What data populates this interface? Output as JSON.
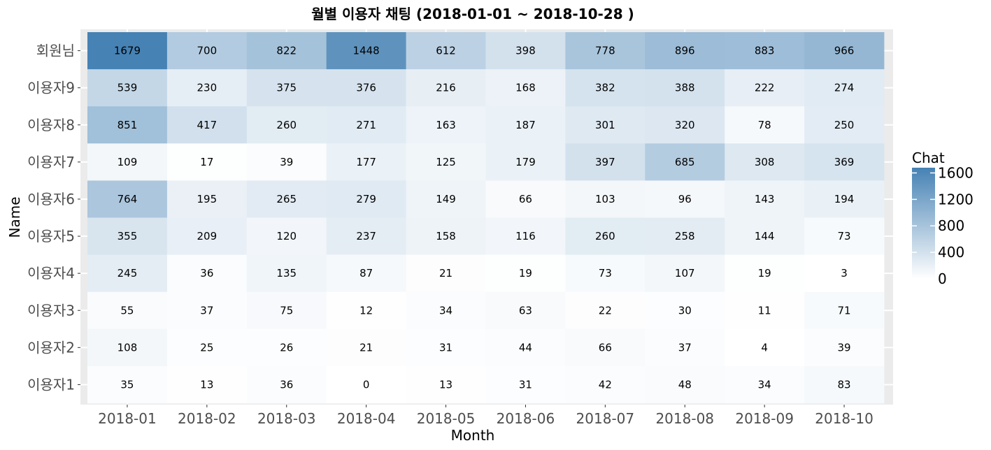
{
  "chart_data": {
    "type": "heatmap",
    "title": "월별 이용자 채팅 (2018-01-01  ~ 2018-10-28 )",
    "xlabel": "Month",
    "ylabel": "Name",
    "x_categories": [
      "2018-01",
      "2018-02",
      "2018-03",
      "2018-04",
      "2018-05",
      "2018-06",
      "2018-07",
      "2018-08",
      "2018-09",
      "2018-10"
    ],
    "y_categories": [
      "회원님",
      "이용자9",
      "이용자8",
      "이용자7",
      "이용자6",
      "이용자5",
      "이용자4",
      "이용자3",
      "이용자2",
      "이용자1"
    ],
    "values": [
      [
        1679,
        700,
        822,
        1448,
        612,
        398,
        778,
        896,
        883,
        966
      ],
      [
        539,
        230,
        375,
        376,
        216,
        168,
        382,
        388,
        222,
        274
      ],
      [
        851,
        417,
        260,
        271,
        163,
        187,
        301,
        320,
        78,
        250
      ],
      [
        109,
        17,
        39,
        177,
        125,
        179,
        397,
        685,
        308,
        369
      ],
      [
        764,
        195,
        265,
        279,
        149,
        66,
        103,
        96,
        143,
        194
      ],
      [
        355,
        209,
        120,
        237,
        158,
        116,
        260,
        258,
        144,
        73
      ],
      [
        245,
        36,
        135,
        87,
        21,
        19,
        73,
        107,
        19,
        3
      ],
      [
        55,
        37,
        75,
        12,
        34,
        63,
        22,
        30,
        11,
        71
      ],
      [
        108,
        25,
        26,
        21,
        31,
        44,
        66,
        37,
        4,
        39
      ],
      [
        35,
        13,
        36,
        0,
        13,
        31,
        42,
        48,
        34,
        83
      ]
    ],
    "legend": {
      "title": "Chat",
      "breaks": [
        0,
        400,
        800,
        1200,
        1600
      ],
      "range": [
        0,
        1679
      ],
      "low_color": "#ffffff",
      "high_color": "#4682b4",
      "placement": "right"
    },
    "panel_background": "#ebebeb",
    "grid_color": "#ffffff"
  }
}
